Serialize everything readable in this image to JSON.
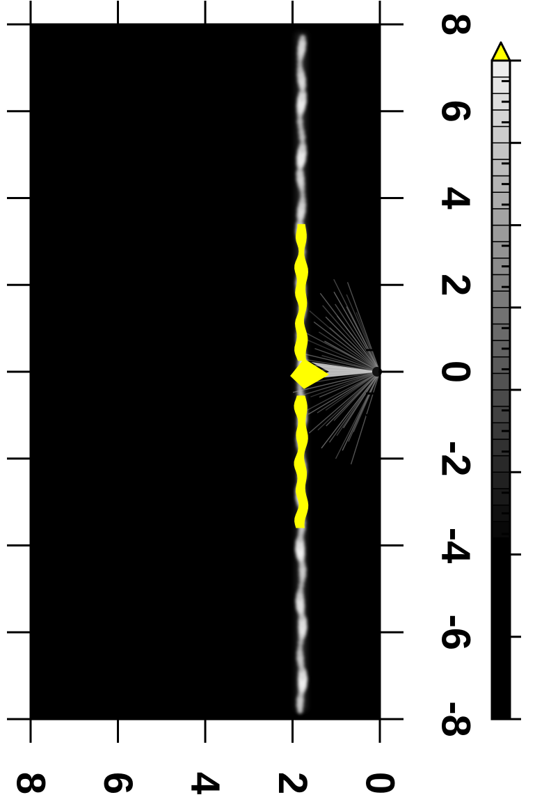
{
  "chart_data": {
    "type": "heatmap",
    "title": "",
    "xlabel": "",
    "ylabel": "",
    "orientation": "rotated 90 degrees clockwise",
    "x_axis": {
      "range": [
        -8,
        8
      ],
      "tick_labels": [
        "-8",
        "-6",
        "-4",
        "-2",
        "0",
        "2",
        "4",
        "6",
        "8"
      ],
      "tick_values": [
        -8,
        -6,
        -4,
        -2,
        0,
        2,
        4,
        6,
        8
      ]
    },
    "y_axis": {
      "range": [
        0,
        8
      ],
      "tick_labels": [
        "0",
        "2",
        "4",
        "6",
        "8"
      ],
      "tick_values": [
        0,
        2,
        4,
        6,
        8
      ]
    },
    "colormap": "grayscale black to white, values above max shown in yellow",
    "colorbar": {
      "range": [
        -8,
        8
      ],
      "tick_labels": [
        "-8",
        "-6",
        "-4",
        "-2",
        "0",
        "2",
        "4",
        "6",
        "8"
      ],
      "tick_values": [
        -8,
        -6,
        -4,
        -2,
        0,
        2,
        4,
        6,
        8
      ],
      "extend": "max",
      "over_color": "#ffff00"
    },
    "features": [
      {
        "name": "disk midplane",
        "y": 1.8,
        "x_range": [
          -7.8,
          7.8
        ],
        "peak_x_range": [
          -3.6,
          3.4
        ]
      },
      {
        "name": "jet fan",
        "origin": [
          0,
          0
        ],
        "x_extent": [
          -2.2,
          2.2
        ],
        "y_extent": [
          0,
          1.8
        ]
      }
    ],
    "grid": false
  },
  "colors": {
    "background": "#000000",
    "over": "#ffff00",
    "frame": "#000000"
  }
}
